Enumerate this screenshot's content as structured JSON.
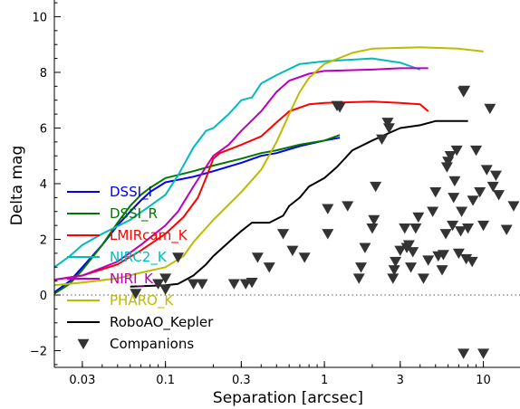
{
  "chart_data": {
    "type": "line",
    "xlabel": "Separation [arcsec]",
    "ylabel": "Delta mag",
    "x_scale": "log",
    "xlim": [
      0.02,
      17
    ],
    "ylim": [
      10.6,
      -2.6
    ],
    "xticks": [
      {
        "value": 0.03,
        "label": "0.03"
      },
      {
        "value": 0.1,
        "label": "0.1"
      },
      {
        "value": 0.3,
        "label": "0.3"
      },
      {
        "value": 1,
        "label": "1"
      },
      {
        "value": 3,
        "label": "3"
      },
      {
        "value": 10,
        "label": "10"
      }
    ],
    "yticks": [
      {
        "value": -2,
        "label": "−2"
      },
      {
        "value": 0,
        "label": "0"
      },
      {
        "value": 2,
        "label": "2"
      },
      {
        "value": 4,
        "label": "4"
      },
      {
        "value": 6,
        "label": "6"
      },
      {
        "value": 8,
        "label": "8"
      },
      {
        "value": 10,
        "label": "10"
      }
    ],
    "reference_line": {
      "y": 0,
      "style": "dotted"
    },
    "legend_position": "lower-left",
    "series": [
      {
        "name": "DSSI_I",
        "color": "#0000ee",
        "points": [
          [
            0.02,
            0.1
          ],
          [
            0.025,
            0.5
          ],
          [
            0.03,
            1.0
          ],
          [
            0.04,
            1.8
          ],
          [
            0.05,
            2.5
          ],
          [
            0.06,
            3.0
          ],
          [
            0.07,
            3.4
          ],
          [
            0.08,
            3.7
          ],
          [
            0.1,
            4.05
          ],
          [
            0.15,
            4.25
          ],
          [
            0.2,
            4.45
          ],
          [
            0.3,
            4.75
          ],
          [
            0.4,
            5.0
          ],
          [
            0.5,
            5.1
          ],
          [
            0.7,
            5.35
          ],
          [
            1.0,
            5.55
          ],
          [
            1.25,
            5.65
          ]
        ]
      },
      {
        "name": "DSSI_R",
        "color": "#007700",
        "points": [
          [
            0.02,
            0.05
          ],
          [
            0.025,
            0.4
          ],
          [
            0.03,
            0.9
          ],
          [
            0.04,
            1.8
          ],
          [
            0.05,
            2.6
          ],
          [
            0.06,
            3.2
          ],
          [
            0.07,
            3.6
          ],
          [
            0.08,
            3.85
          ],
          [
            0.1,
            4.2
          ],
          [
            0.15,
            4.45
          ],
          [
            0.2,
            4.65
          ],
          [
            0.3,
            4.9
          ],
          [
            0.4,
            5.1
          ],
          [
            0.5,
            5.2
          ],
          [
            0.7,
            5.4
          ],
          [
            1.0,
            5.55
          ],
          [
            1.25,
            5.75
          ]
        ]
      },
      {
        "name": "LMIRcam_K",
        "color": "#ff0000",
        "points": [
          [
            0.02,
            0.55
          ],
          [
            0.03,
            0.7
          ],
          [
            0.05,
            1.1
          ],
          [
            0.07,
            1.6
          ],
          [
            0.1,
            2.2
          ],
          [
            0.13,
            2.8
          ],
          [
            0.16,
            3.5
          ],
          [
            0.18,
            4.2
          ],
          [
            0.2,
            4.9
          ],
          [
            0.22,
            5.1
          ],
          [
            0.3,
            5.4
          ],
          [
            0.4,
            5.7
          ],
          [
            0.5,
            6.2
          ],
          [
            0.6,
            6.6
          ],
          [
            0.8,
            6.85
          ],
          [
            1.0,
            6.9
          ],
          [
            2.0,
            6.95
          ],
          [
            3.0,
            6.9
          ],
          [
            4.0,
            6.85
          ],
          [
            4.5,
            6.6
          ]
        ]
      },
      {
        "name": "NIRC2_K",
        "color": "#00bbbb",
        "points": [
          [
            0.02,
            1.0
          ],
          [
            0.025,
            1.4
          ],
          [
            0.03,
            1.8
          ],
          [
            0.04,
            2.2
          ],
          [
            0.06,
            2.7
          ],
          [
            0.08,
            3.2
          ],
          [
            0.1,
            3.6
          ],
          [
            0.12,
            4.3
          ],
          [
            0.15,
            5.3
          ],
          [
            0.18,
            5.9
          ],
          [
            0.2,
            6.0
          ],
          [
            0.25,
            6.5
          ],
          [
            0.3,
            7.0
          ],
          [
            0.35,
            7.1
          ],
          [
            0.4,
            7.6
          ],
          [
            0.5,
            7.9
          ],
          [
            0.7,
            8.3
          ],
          [
            1.0,
            8.4
          ],
          [
            2.0,
            8.5
          ],
          [
            3.0,
            8.35
          ],
          [
            4.0,
            8.1
          ]
        ]
      },
      {
        "name": "NIRI_K",
        "color": "#bb00bb",
        "points": [
          [
            0.02,
            0.55
          ],
          [
            0.03,
            0.7
          ],
          [
            0.05,
            1.2
          ],
          [
            0.07,
            1.8
          ],
          [
            0.1,
            2.5
          ],
          [
            0.12,
            3.0
          ],
          [
            0.15,
            3.9
          ],
          [
            0.18,
            4.6
          ],
          [
            0.2,
            5.0
          ],
          [
            0.25,
            5.4
          ],
          [
            0.3,
            5.9
          ],
          [
            0.4,
            6.6
          ],
          [
            0.5,
            7.3
          ],
          [
            0.6,
            7.7
          ],
          [
            0.8,
            7.95
          ],
          [
            1.0,
            8.05
          ],
          [
            2.0,
            8.1
          ],
          [
            3.0,
            8.15
          ],
          [
            4.5,
            8.15
          ]
        ]
      },
      {
        "name": "PHARO_K",
        "color": "#bbbb00",
        "points": [
          [
            0.02,
            0.35
          ],
          [
            0.03,
            0.45
          ],
          [
            0.05,
            0.6
          ],
          [
            0.07,
            0.8
          ],
          [
            0.1,
            1.0
          ],
          [
            0.13,
            1.4
          ],
          [
            0.15,
            1.9
          ],
          [
            0.2,
            2.7
          ],
          [
            0.3,
            3.7
          ],
          [
            0.4,
            4.5
          ],
          [
            0.5,
            5.5
          ],
          [
            0.6,
            6.5
          ],
          [
            0.7,
            7.3
          ],
          [
            0.8,
            7.8
          ],
          [
            1.0,
            8.3
          ],
          [
            1.5,
            8.7
          ],
          [
            2.0,
            8.85
          ],
          [
            4.0,
            8.9
          ],
          [
            7.0,
            8.85
          ],
          [
            10.0,
            8.75
          ]
        ]
      },
      {
        "name": "RoboAO_Kepler",
        "color": "#000000",
        "points": [
          [
            0.06,
            0.3
          ],
          [
            0.1,
            0.35
          ],
          [
            0.12,
            0.4
          ],
          [
            0.15,
            0.7
          ],
          [
            0.18,
            1.1
          ],
          [
            0.2,
            1.4
          ],
          [
            0.25,
            1.9
          ],
          [
            0.3,
            2.3
          ],
          [
            0.35,
            2.6
          ],
          [
            0.45,
            2.6
          ],
          [
            0.55,
            2.85
          ],
          [
            0.6,
            3.2
          ],
          [
            0.7,
            3.5
          ],
          [
            0.8,
            3.9
          ],
          [
            1.0,
            4.2
          ],
          [
            1.2,
            4.6
          ],
          [
            1.5,
            5.2
          ],
          [
            2.0,
            5.55
          ],
          [
            3.0,
            6.0
          ],
          [
            4.0,
            6.1
          ],
          [
            5.0,
            6.25
          ],
          [
            8.0,
            6.25
          ]
        ]
      }
    ],
    "companions": {
      "name": "Companions",
      "marker": "triangle-down",
      "color": "#333333",
      "points": [
        [
          0.065,
          0.05
        ],
        [
          0.09,
          0.4
        ],
        [
          0.1,
          0.2
        ],
        [
          0.1,
          0.6
        ],
        [
          0.12,
          1.35
        ],
        [
          0.15,
          0.4
        ],
        [
          0.17,
          0.4
        ],
        [
          0.27,
          0.4
        ],
        [
          0.32,
          0.4
        ],
        [
          0.35,
          0.45
        ],
        [
          0.38,
          1.35
        ],
        [
          0.45,
          1.0
        ],
        [
          0.55,
          2.2
        ],
        [
          0.63,
          1.6
        ],
        [
          0.75,
          1.35
        ],
        [
          1.05,
          2.2
        ],
        [
          1.05,
          3.1
        ],
        [
          1.4,
          3.2
        ],
        [
          1.2,
          6.8
        ],
        [
          1.25,
          6.75
        ],
        [
          1.65,
          0.6
        ],
        [
          1.7,
          1.0
        ],
        [
          1.8,
          1.7
        ],
        [
          2.0,
          2.4
        ],
        [
          2.05,
          2.7
        ],
        [
          2.1,
          3.9
        ],
        [
          2.3,
          5.6
        ],
        [
          2.5,
          6.2
        ],
        [
          2.55,
          6.0
        ],
        [
          2.7,
          0.6
        ],
        [
          2.75,
          0.9
        ],
        [
          2.8,
          1.2
        ],
        [
          3.0,
          1.6
        ],
        [
          3.2,
          2.4
        ],
        [
          3.3,
          1.7
        ],
        [
          3.4,
          1.8
        ],
        [
          3.5,
          1.0
        ],
        [
          3.6,
          1.55
        ],
        [
          3.75,
          2.4
        ],
        [
          3.9,
          2.8
        ],
        [
          4.2,
          0.6
        ],
        [
          4.5,
          1.25
        ],
        [
          4.8,
          3.0
        ],
        [
          5.0,
          3.7
        ],
        [
          5.2,
          1.4
        ],
        [
          5.5,
          0.9
        ],
        [
          5.6,
          1.45
        ],
        [
          5.8,
          2.2
        ],
        [
          5.9,
          4.6
        ],
        [
          6.0,
          4.8
        ],
        [
          6.2,
          5.0
        ],
        [
          6.4,
          2.5
        ],
        [
          6.5,
          3.5
        ],
        [
          6.6,
          4.1
        ],
        [
          6.8,
          5.2
        ],
        [
          7.0,
          1.5
        ],
        [
          7.2,
          2.3
        ],
        [
          7.3,
          3.0
        ],
        [
          7.5,
          7.3
        ],
        [
          7.6,
          7.35
        ],
        [
          7.8,
          1.3
        ],
        [
          8.0,
          2.4
        ],
        [
          8.5,
          1.2
        ],
        [
          8.6,
          3.4
        ],
        [
          9.0,
          5.2
        ],
        [
          9.5,
          3.7
        ],
        [
          10.0,
          2.5
        ],
        [
          10.5,
          4.5
        ],
        [
          11.0,
          6.7
        ],
        [
          11.5,
          3.9
        ],
        [
          12.0,
          4.3
        ],
        [
          12.5,
          3.6
        ],
        [
          14.0,
          2.35
        ],
        [
          15.5,
          3.2
        ],
        [
          7.5,
          -2.1
        ],
        [
          10.0,
          -2.1
        ]
      ]
    }
  }
}
